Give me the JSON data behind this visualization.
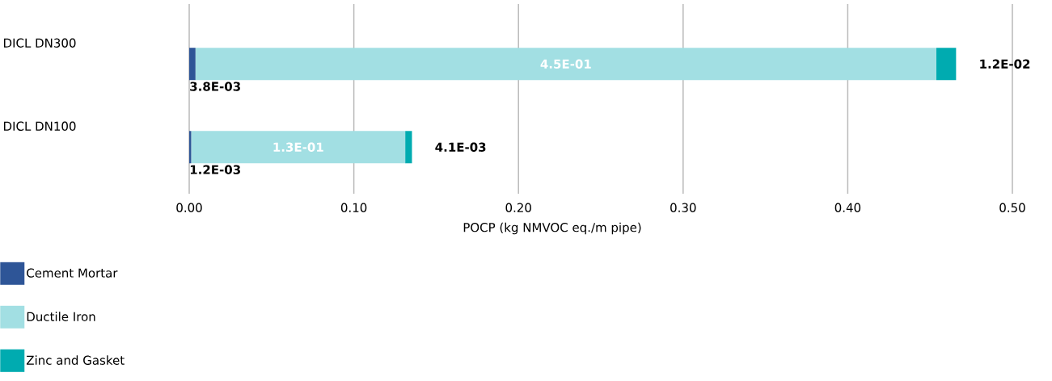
{
  "chart_data": {
    "type": "bar",
    "orientation": "horizontal",
    "stacked": true,
    "categories": [
      "DICL DN300",
      "DICL DN100"
    ],
    "series": [
      {
        "name": "Cement Mortar",
        "color": "#2e5597",
        "values": [
          0.0038,
          0.0012
        ],
        "value_labels": [
          "3.8E-03",
          "1.2E-03"
        ]
      },
      {
        "name": "Ductile Iron",
        "color": "#a2dfe3",
        "values": [
          0.45,
          0.13
        ],
        "value_labels": [
          "4.5E-01",
          "1.3E-01"
        ]
      },
      {
        "name": "Zinc and Gasket",
        "color": "#00abb0",
        "values": [
          0.012,
          0.0041
        ],
        "value_labels": [
          "1.2E-02",
          "4.1E-03"
        ]
      }
    ],
    "xlim": [
      0,
      0.5
    ],
    "xticks": [
      {
        "value": 0,
        "label": "0.00"
      },
      {
        "value": 0.1,
        "label": "0.10"
      },
      {
        "value": 0.2,
        "label": "0.20"
      },
      {
        "value": 0.3,
        "label": "0.30"
      },
      {
        "value": 0.4,
        "label": "0.40"
      },
      {
        "value": 0.5,
        "label": "0.50"
      }
    ],
    "xlabel": "POCP (kg NMVOC eq./m pipe)",
    "grid": "x",
    "legend": "bottom left"
  }
}
